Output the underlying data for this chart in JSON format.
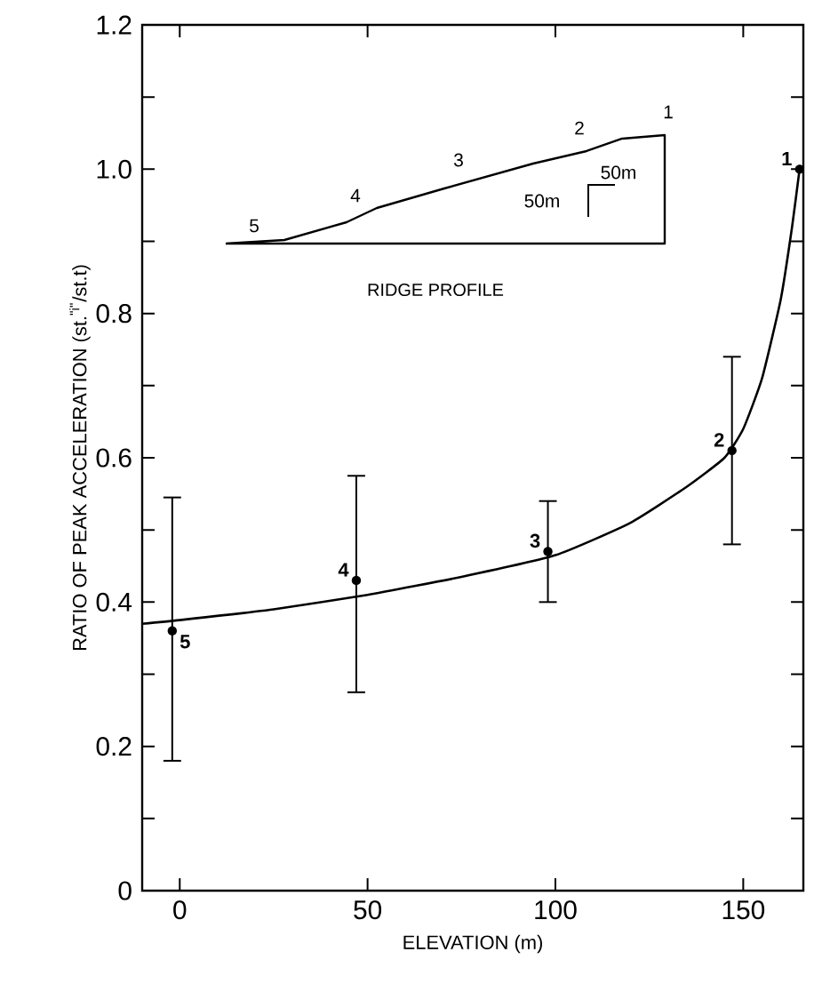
{
  "chart_data": {
    "type": "scatter",
    "xlabel": "ELEVATION (m)",
    "ylabel": "RATIO OF PEAK ACCELERATION (st.$^{\"i\"}$/st.t)",
    "xlim": [
      -10,
      166
    ],
    "xticks": [
      0,
      50,
      100,
      150
    ],
    "ylim": [
      0,
      1.2
    ],
    "yticks": [
      0,
      {
        "value": 0.1,
        "label": null
      },
      0.2,
      {
        "value": 0.3,
        "label": null
      },
      0.4,
      {
        "value": 0.5,
        "label": null
      },
      0.6,
      {
        "value": 0.7,
        "label": null
      },
      0.8,
      {
        "value": 0.9,
        "label": null
      },
      {
        "value": 1.0,
        "label": "1.0"
      },
      {
        "value": 1.1,
        "label": null
      },
      1.2
    ],
    "grid": false,
    "marker": "circle",
    "series": [
      {
        "color": "#000000",
        "x": [
          -2,
          47,
          98,
          147,
          165
        ],
        "values": [
          0.36,
          0.43,
          0.47,
          0.61,
          1.0
        ],
        "errors": [
          [
            0.18,
            0.545
          ],
          [
            0.275,
            0.575
          ],
          [
            0.4,
            0.54
          ],
          [
            0.48,
            0.74
          ],
          null
        ]
      },
      {
        "type": "line",
        "color": "#000000",
        "marker": "none",
        "x": [
          -10,
          0,
          25,
          50,
          75,
          100,
          120,
          135,
          145,
          150,
          155,
          160,
          163,
          165
        ],
        "values": [
          0.37,
          0.375,
          0.39,
          0.41,
          0.435,
          0.465,
          0.51,
          0.56,
          0.6,
          0.64,
          0.71,
          0.82,
          0.92,
          1.0
        ]
      }
    ],
    "annotations": [
      {
        "text": "5",
        "x": -2,
        "y": 0.36
      },
      {
        "text": "4",
        "x": 47,
        "y": 0.43
      },
      {
        "text": "3",
        "x": 98,
        "y": 0.47
      },
      {
        "text": "2",
        "x": 147,
        "y": 0.61
      },
      {
        "text": "1",
        "x": 165,
        "y": 1.0
      },
      "RIDGE PROFILE",
      "50m",
      "50m",
      "1",
      "2",
      "3",
      "4",
      "5"
    ]
  }
}
